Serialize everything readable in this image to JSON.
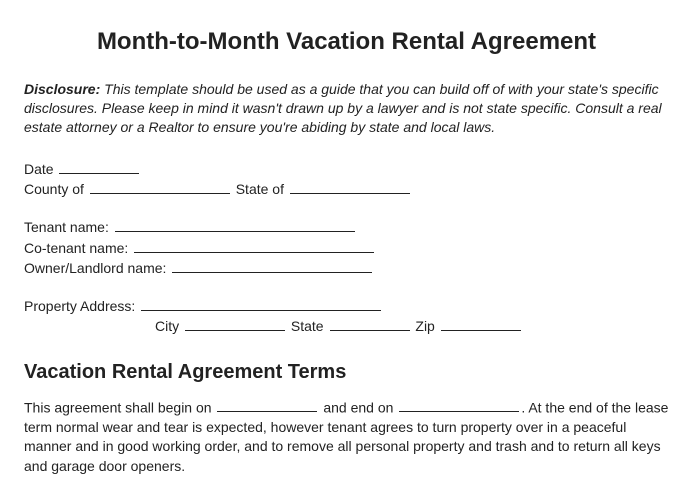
{
  "title": "Month-to-Month Vacation Rental Agreement",
  "disclosure": {
    "label": "Disclosure:",
    "text": "This template should be used as a guide that you can build off of with your state's specific disclosures. Please keep in mind it wasn't drawn up by a lawyer and is not state specific. Consult a real estate attorney or a Realtor to ensure you're abiding by state and local laws."
  },
  "fields": {
    "date": "Date",
    "county_of": "County of",
    "state_of": "State of",
    "tenant_name": "Tenant name:",
    "co_tenant_name": "Co-tenant name:",
    "owner_landlord_name": "Owner/Landlord name:",
    "property_address": "Property Address:",
    "city": "City",
    "state": "State",
    "zip": "Zip"
  },
  "terms": {
    "heading": "Vacation Rental Agreement Terms",
    "p1a": "This agreement shall begin on",
    "p1b": "and end on",
    "p1c": ". At the end of the lease term normal wear and tear is expected, however tenant agrees to turn property over in a peaceful manner and in good working order, and to remove all personal property and trash and to return all keys and garage door openers."
  },
  "style": {
    "text_color": "#222222",
    "background_color": "#ffffff",
    "title_fontsize": 24,
    "section_fontsize": 20,
    "body_fontsize": 14
  }
}
